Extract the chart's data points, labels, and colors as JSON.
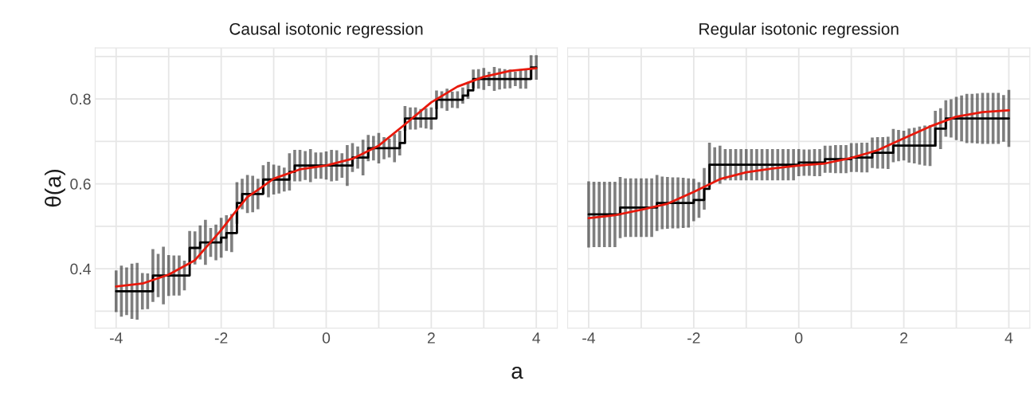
{
  "chart_data": [
    {
      "type": "line",
      "title": "Causal isotonic regression",
      "xlabel": "a",
      "ylabel": "θ(a)",
      "xlim": [
        -4.4,
        4.4
      ],
      "ylim": [
        0.26,
        0.92
      ],
      "xticks": [
        -4,
        {
          "value": -3,
          "label": null
        },
        -2,
        {
          "value": -1,
          "label": null
        },
        0,
        {
          "value": 1,
          "label": null
        },
        2,
        {
          "value": 3,
          "label": null
        },
        4
      ],
      "yticks": [
        {
          "value": 0.3,
          "label": null
        },
        0.4,
        {
          "value": 0.5,
          "label": null
        },
        0.6,
        {
          "value": 0.7,
          "label": null
        },
        0.8,
        {
          "value": 0.9,
          "label": null
        }
      ],
      "grid": true,
      "series": [
        {
          "type": "step",
          "color": "#000000",
          "errors": [
            0.049,
            0.06,
            0.056,
            0.065,
            0.067,
            0.043,
            0.042,
            0.062,
            0.051,
            0.068,
            0.048,
            0.047,
            0.047,
            0.035,
            0.04,
            0.039,
            0.04,
            0.053,
            0.034,
            0.042,
            0.047,
            0.042,
            0.045,
            0.049,
            0.036,
            0.045,
            0.043,
            0.036,
            0.034,
            0.042,
            0.035,
            0.033,
            0.028,
            0.044,
            0.037,
            0.037,
            0.034,
            0.039,
            0.031,
            0.031,
            0.033,
            0.037,
            0.036,
            0.029,
            0.048,
            0.034,
            0.026,
            0.042,
            0.031,
            0.029,
            0.036,
            0.026,
            0.022,
            0.033,
            0.029,
            0.029,
            0.026,
            0.026,
            0.022,
            0.024,
            0.026,
            0.022,
            0.02,
            0.026,
            0.019,
            0.02,
            0.019,
            0.02,
            0.022,
            0.023,
            0.026,
            0.017,
            0.028,
            0.025,
            0.023,
            0.022,
            0.017,
            0.023,
            0.023,
            0.029,
            0.029
          ],
          "x": [
            -4.0,
            -3.9,
            -3.8,
            -3.7,
            -3.6,
            -3.5,
            -3.4,
            -3.3,
            -3.2,
            -3.1,
            -3.0,
            -2.9,
            -2.8,
            -2.7,
            -2.6,
            -2.5,
            -2.4,
            -2.3,
            -2.2,
            -2.1,
            -2.0,
            -1.9,
            -1.8,
            -1.7,
            -1.6,
            -1.5,
            -1.4,
            -1.3,
            -1.2,
            -1.1,
            -1.0,
            -0.9,
            -0.8,
            -0.7,
            -0.6,
            -0.5,
            -0.4,
            -0.3,
            -0.2,
            -0.1,
            0.0,
            0.1,
            0.2,
            0.3,
            0.4,
            0.5,
            0.6,
            0.7,
            0.8,
            0.9,
            1.0,
            1.1,
            1.2,
            1.3,
            1.4,
            1.5,
            1.6,
            1.7,
            1.8,
            1.9,
            2.0,
            2.1,
            2.2,
            2.3,
            2.4,
            2.5,
            2.6,
            2.7,
            2.8,
            2.9,
            3.0,
            3.1,
            3.2,
            3.3,
            3.4,
            3.5,
            3.6,
            3.7,
            3.8,
            3.9,
            4.0
          ],
          "values": [
            0.347,
            0.347,
            0.347,
            0.347,
            0.347,
            0.347,
            0.347,
            0.384,
            0.384,
            0.384,
            0.384,
            0.384,
            0.384,
            0.384,
            0.449,
            0.449,
            0.462,
            0.462,
            0.462,
            0.462,
            0.473,
            0.484,
            0.484,
            0.555,
            0.576,
            0.576,
            0.576,
            0.576,
            0.61,
            0.61,
            0.61,
            0.61,
            0.61,
            0.628,
            0.643,
            0.643,
            0.643,
            0.643,
            0.643,
            0.643,
            0.643,
            0.643,
            0.643,
            0.643,
            0.643,
            0.662,
            0.662,
            0.662,
            0.684,
            0.684,
            0.684,
            0.684,
            0.684,
            0.684,
            0.696,
            0.754,
            0.754,
            0.754,
            0.754,
            0.754,
            0.754,
            0.798,
            0.798,
            0.798,
            0.798,
            0.798,
            0.808,
            0.82,
            0.847,
            0.847,
            0.847,
            0.847,
            0.847,
            0.847,
            0.847,
            0.847,
            0.847,
            0.847,
            0.847,
            0.874,
            0.874
          ]
        },
        {
          "color": "#e8190c",
          "x": [
            -4,
            -3.5,
            -3,
            -2.5,
            -2,
            -1.75,
            -1.5,
            -1.25,
            -1,
            -0.5,
            0,
            0.5,
            1,
            1.5,
            2,
            2.5,
            3,
            3.5,
            4
          ],
          "values": [
            0.358,
            0.365,
            0.386,
            0.42,
            0.491,
            0.531,
            0.569,
            0.59,
            0.612,
            0.634,
            0.643,
            0.659,
            0.69,
            0.74,
            0.792,
            0.829,
            0.852,
            0.866,
            0.872
          ]
        }
      ]
    },
    {
      "type": "line",
      "title": "Regular isotonic regression",
      "xlim": [
        -4.4,
        4.4
      ],
      "ylim": [
        0.26,
        0.92
      ],
      "tick_labels": "x",
      "xticks": [
        -4,
        {
          "value": -3,
          "label": null
        },
        -2,
        {
          "value": -1,
          "label": null
        },
        0,
        {
          "value": 1,
          "label": null
        },
        2,
        {
          "value": 3,
          "label": null
        },
        4
      ],
      "yticks": [
        {
          "value": 0.3,
          "label": null
        },
        0.4,
        {
          "value": 0.5,
          "label": null
        },
        0.6,
        {
          "value": 0.7,
          "label": null
        },
        0.8,
        {
          "value": 0.9,
          "label": null
        }
      ],
      "grid": true,
      "series": [
        {
          "type": "step",
          "color": "#000000",
          "errors": [
            0.078,
            0.077,
            0.077,
            0.077,
            0.077,
            0.077,
            0.072,
            0.069,
            0.069,
            0.069,
            0.069,
            0.069,
            0.069,
            0.066,
            0.062,
            0.061,
            0.06,
            0.06,
            0.059,
            0.058,
            0.05,
            0.042,
            0.049,
            0.052,
            0.041,
            0.045,
            0.037,
            0.037,
            0.037,
            0.037,
            0.037,
            0.037,
            0.037,
            0.037,
            0.037,
            0.037,
            0.037,
            0.037,
            0.037,
            0.037,
            0.032,
            0.031,
            0.031,
            0.032,
            0.032,
            0.032,
            0.032,
            0.033,
            0.033,
            0.033,
            0.034,
            0.034,
            0.035,
            0.035,
            0.036,
            0.037,
            0.037,
            0.038,
            0.039,
            0.037,
            0.035,
            0.04,
            0.042,
            0.045,
            0.047,
            0.048,
            0.042,
            0.048,
            0.043,
            0.045,
            0.051,
            0.054,
            0.058,
            0.058,
            0.059,
            0.06,
            0.06,
            0.06,
            0.06,
            0.055,
            0.067
          ],
          "x": [
            -4.0,
            -3.9,
            -3.8,
            -3.7,
            -3.6,
            -3.5,
            -3.4,
            -3.3,
            -3.2,
            -3.1,
            -3.0,
            -2.9,
            -2.8,
            -2.7,
            -2.6,
            -2.5,
            -2.4,
            -2.3,
            -2.2,
            -2.1,
            -2.0,
            -1.9,
            -1.8,
            -1.7,
            -1.6,
            -1.5,
            -1.4,
            -1.3,
            -1.2,
            -1.1,
            -1.0,
            -0.9,
            -0.8,
            -0.7,
            -0.6,
            -0.5,
            -0.4,
            -0.3,
            -0.2,
            -0.1,
            0.0,
            0.1,
            0.2,
            0.3,
            0.4,
            0.5,
            0.6,
            0.7,
            0.8,
            0.9,
            1.0,
            1.1,
            1.2,
            1.3,
            1.4,
            1.5,
            1.6,
            1.7,
            1.8,
            1.9,
            2.0,
            2.1,
            2.2,
            2.3,
            2.4,
            2.5,
            2.6,
            2.7,
            2.8,
            2.9,
            3.0,
            3.1,
            3.2,
            3.3,
            3.4,
            3.5,
            3.6,
            3.7,
            3.8,
            3.9,
            4.0
          ],
          "values": [
            0.528,
            0.528,
            0.528,
            0.528,
            0.528,
            0.528,
            0.544,
            0.544,
            0.544,
            0.544,
            0.544,
            0.544,
            0.544,
            0.555,
            0.555,
            0.555,
            0.555,
            0.555,
            0.555,
            0.555,
            0.562,
            0.562,
            0.588,
            0.645,
            0.645,
            0.645,
            0.645,
            0.645,
            0.645,
            0.645,
            0.645,
            0.645,
            0.645,
            0.645,
            0.645,
            0.645,
            0.645,
            0.645,
            0.645,
            0.645,
            0.65,
            0.65,
            0.65,
            0.65,
            0.65,
            0.658,
            0.658,
            0.658,
            0.658,
            0.658,
            0.662,
            0.662,
            0.662,
            0.662,
            0.673,
            0.673,
            0.673,
            0.673,
            0.69,
            0.69,
            0.69,
            0.69,
            0.69,
            0.69,
            0.69,
            0.69,
            0.73,
            0.73,
            0.754,
            0.754,
            0.754,
            0.754,
            0.754,
            0.754,
            0.754,
            0.754,
            0.754,
            0.754,
            0.754,
            0.754,
            0.754
          ]
        },
        {
          "color": "#e8190c",
          "x": [
            -4,
            -3.5,
            -3,
            -2.5,
            -2,
            -1.5,
            -1,
            -0.5,
            0,
            0.5,
            1,
            1.5,
            2,
            2.5,
            3,
            3.5,
            4
          ],
          "values": [
            0.519,
            0.526,
            0.539,
            0.553,
            0.581,
            0.611,
            0.627,
            0.636,
            0.643,
            0.648,
            0.661,
            0.679,
            0.707,
            0.735,
            0.758,
            0.769,
            0.773
          ]
        }
      ]
    }
  ]
}
